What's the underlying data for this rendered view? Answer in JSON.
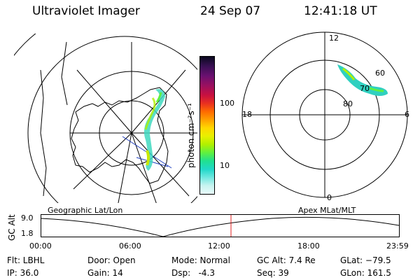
{
  "header": {
    "title": "Ultraviolet Imager",
    "date": "24 Sep 07",
    "time": "12:41:18 UT"
  },
  "geo_panel": {
    "label": "Geographic Lat/Lon"
  },
  "colorbar": {
    "label": "photon cm⁻²s⁻¹",
    "ticks": [
      "100",
      "10"
    ],
    "colors": [
      "#0a0a1e",
      "#3a1055",
      "#6a1070",
      "#9a1060",
      "#c81040",
      "#e83020",
      "#ff6a00",
      "#ffa000",
      "#ffd800",
      "#e8f000",
      "#b0f000",
      "#60f040",
      "#20e090",
      "#20d8c8",
      "#70e8e0",
      "#c8f4f0",
      "#e8fafa"
    ]
  },
  "polar_panel": {
    "label": "Apex MLat/MLT",
    "mlt_labels": {
      "top": "12",
      "left": "18",
      "right": "6",
      "bottom": "0"
    },
    "lat_labels": [
      "60",
      "70",
      "80"
    ]
  },
  "alt_plot": {
    "ylabel": "GC Alt",
    "yticks": [
      "9.0",
      "1.8"
    ],
    "xticks": [
      "00:00",
      "06:00",
      "12:00",
      "18:00",
      "23:59"
    ],
    "marker_color": "#e02020"
  },
  "info": {
    "filter": "Flt: LBHL",
    "ip": "IP: 36.0",
    "door": "Door: Open",
    "gain": "Gain: 14",
    "mode": "Mode: Normal",
    "dsp": "Dsp:   -4.3",
    "gc_alt": "GC Alt: 7.4 Re",
    "seq": "Seq: 39",
    "glat": "GLat: −79.5",
    "glon": "GLon: 161.5"
  }
}
